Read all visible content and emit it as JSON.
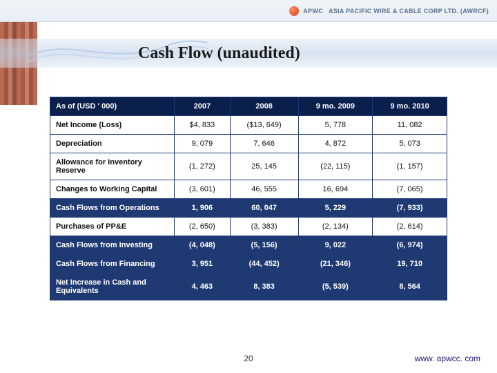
{
  "header": {
    "company": "APWC",
    "company_full": "ASIA PACIFIC WIRE & CABLE CORP LTD. (AWRCF)"
  },
  "title": "Cash Flow (unaudited)",
  "table": {
    "columns": [
      "As of (USD ' 000)",
      "2007",
      "2008",
      "9 mo. 2009",
      "9 mo. 2010"
    ],
    "rows": [
      {
        "label": "Net Income (Loss)",
        "values": [
          "$4, 833",
          "($13, 649)",
          "5, 778",
          "11, 082"
        ],
        "highlight": false
      },
      {
        "label": "Depreciation",
        "values": [
          "9, 079",
          "7, 646",
          "4, 872",
          "5, 073"
        ],
        "highlight": false
      },
      {
        "label": "Allowance for Inventory Reserve",
        "values": [
          "(1, 272)",
          "25, 145",
          "(22, 115)",
          "(1, 157)"
        ],
        "highlight": false
      },
      {
        "label": "Changes to Working Capital",
        "values": [
          "(3, 601)",
          "46, 555",
          "16, 694",
          "(7, 065)"
        ],
        "highlight": false
      },
      {
        "label": "Cash Flows from Operations",
        "values": [
          "1, 906",
          "60, 047",
          "5, 229",
          "(7, 933)"
        ],
        "highlight": true
      },
      {
        "label": "Purchases of PP&E",
        "values": [
          "(2, 650)",
          "(3, 383)",
          "(2, 134)",
          "(2, 614)"
        ],
        "highlight": false
      },
      {
        "label": "Cash Flows from Investing",
        "values": [
          "(4, 048)",
          "(5, 156)",
          "9, 022",
          "(6, 974)"
        ],
        "highlight": true
      },
      {
        "label": "Cash Flows from Financing",
        "values": [
          "3, 951",
          "(44, 452)",
          "(21, 346)",
          "19, 710"
        ],
        "highlight": true
      },
      {
        "label": "Net Increase in Cash and Equivalents",
        "values": [
          "4, 463",
          "8, 383",
          "(5, 539)",
          "8, 564"
        ],
        "highlight": true
      }
    ],
    "header_bg": "#0b1f4d",
    "highlight_bg": "#1f3a73",
    "border_color": "#1f3a73",
    "text_color": "#111111",
    "header_text_color": "#ffffff",
    "font_size": 11
  },
  "footer": {
    "page": "20",
    "url": "www. apwcc. com"
  }
}
